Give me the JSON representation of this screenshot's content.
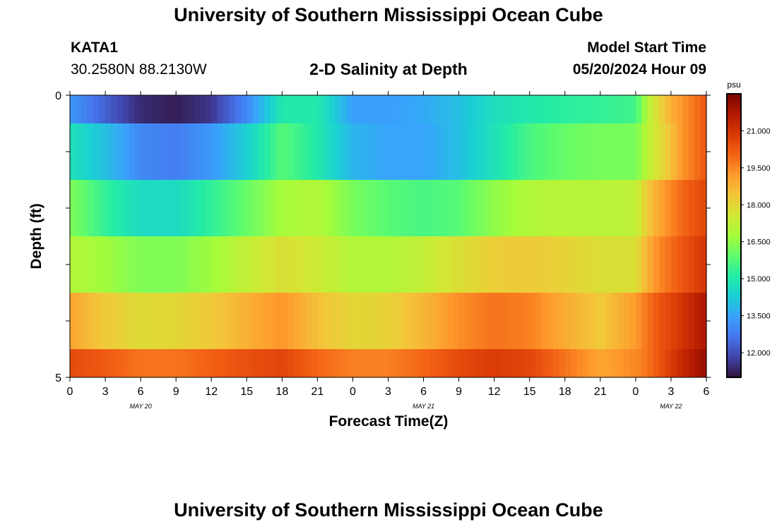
{
  "header": {
    "title": "University of Southern Mississippi Ocean Cube",
    "station": "KATA1",
    "coords": "30.2580N  88.2130W",
    "subtitle": "2-D Salinity at Depth",
    "model_label": "Model Start Time",
    "model_time": "05/20/2024 Hour 09"
  },
  "footer": {
    "title": "University of Southern Mississippi Ocean Cube"
  },
  "chart_data": {
    "type": "heatmap",
    "title": "2-D Salinity at Depth",
    "xlabel": "Forecast Time(Z)",
    "ylabel": "Depth (ft)",
    "ylim": [
      0,
      5
    ],
    "y_tick_labels": [
      "0",
      "5"
    ],
    "x_tick_labels": [
      "0",
      "3",
      "6",
      "9",
      "12",
      "15",
      "18",
      "21",
      "0",
      "3",
      "6",
      "9",
      "12",
      "15",
      "18",
      "21",
      "0",
      "3",
      "6"
    ],
    "date_labels": [
      {
        "label": "MAY 20",
        "at_tick": 2
      },
      {
        "label": "MAY 21",
        "at_tick": 10
      },
      {
        "label": "MAY 22",
        "at_tick": 17
      }
    ],
    "colorbar": {
      "unit": "psu",
      "min": 11.0,
      "max": 22.5,
      "ticks": [
        "12.000",
        "13.500",
        "15.000",
        "16.500",
        "18.000",
        "19.500",
        "21.000"
      ],
      "tick_values": [
        12.0,
        13.5,
        15.0,
        16.5,
        18.0,
        19.5,
        21.0
      ],
      "colors": [
        "#30123b",
        "#4145ab",
        "#4675ed",
        "#39a2fc",
        "#1bcfd4",
        "#24eca6",
        "#61fc6c",
        "#a4fc3b",
        "#d1e834",
        "#f3c63a",
        "#fe9b2d",
        "#f36315",
        "#d93806",
        "#b11901",
        "#7a0403"
      ]
    },
    "x_hours": [
      0,
      54
    ],
    "depth_bands": [
      {
        "depth": [
          0.0,
          0.5
        ],
        "time_hours": [
          0,
          3,
          6,
          9,
          12,
          15,
          18,
          21,
          24,
          27,
          30,
          33,
          36,
          39,
          42,
          45,
          48,
          49,
          50,
          51,
          52,
          53,
          54
        ],
        "salinity": [
          13.3,
          12.3,
          11.4,
          11.2,
          11.6,
          13.0,
          15.0,
          15.0,
          13.4,
          13.4,
          13.6,
          14.0,
          14.7,
          15.0,
          15.2,
          15.3,
          15.5,
          17.0,
          18.0,
          18.8,
          19.3,
          19.8,
          20.3
        ]
      },
      {
        "depth": [
          0.5,
          1.5
        ],
        "time_hours": [
          0,
          3,
          6,
          9,
          12,
          15,
          18,
          21,
          24,
          27,
          30,
          33,
          36,
          39,
          42,
          45,
          48,
          49,
          50,
          51,
          52,
          53,
          54
        ],
        "salinity": [
          14.8,
          14.0,
          13.0,
          12.8,
          13.3,
          14.3,
          15.8,
          15.0,
          13.8,
          13.5,
          13.5,
          14.0,
          14.8,
          15.6,
          16.0,
          16.2,
          16.2,
          17.2,
          17.8,
          18.5,
          19.3,
          19.8,
          20.3
        ]
      },
      {
        "depth": [
          1.5,
          2.5
        ],
        "time_hours": [
          0,
          3,
          6,
          9,
          12,
          15,
          18,
          21,
          24,
          27,
          30,
          33,
          36,
          39,
          42,
          45,
          48,
          49,
          50,
          51,
          52,
          53,
          54
        ],
        "salinity": [
          16.3,
          15.3,
          14.6,
          14.6,
          15.3,
          16.0,
          16.8,
          17.0,
          16.2,
          15.8,
          15.6,
          15.8,
          16.5,
          17.0,
          17.1,
          17.1,
          17.2,
          18.3,
          19.0,
          19.5,
          20.0,
          20.3,
          20.6
        ]
      },
      {
        "depth": [
          2.5,
          3.5
        ],
        "time_hours": [
          0,
          3,
          6,
          9,
          12,
          15,
          18,
          21,
          24,
          27,
          30,
          33,
          36,
          39,
          42,
          45,
          48,
          49,
          50,
          51,
          52,
          53,
          54
        ],
        "salinity": [
          17.0,
          16.7,
          16.3,
          16.3,
          16.7,
          17.3,
          17.8,
          17.5,
          17.0,
          17.0,
          17.3,
          17.8,
          18.2,
          18.3,
          18.1,
          17.8,
          17.8,
          18.8,
          19.5,
          19.9,
          20.3,
          20.6,
          21.0
        ]
      },
      {
        "depth": [
          3.5,
          4.5
        ],
        "time_hours": [
          0,
          3,
          6,
          9,
          12,
          15,
          18,
          21,
          24,
          27,
          30,
          33,
          36,
          39,
          42,
          45,
          48,
          49,
          50,
          51,
          52,
          53,
          54
        ],
        "salinity": [
          19.0,
          18.3,
          17.9,
          18.0,
          18.3,
          18.8,
          19.3,
          18.5,
          18.0,
          18.1,
          18.7,
          19.4,
          19.8,
          19.6,
          18.9,
          18.3,
          19.2,
          19.8,
          20.3,
          20.6,
          21.0,
          21.4,
          21.8
        ]
      },
      {
        "depth": [
          4.5,
          5.0
        ],
        "time_hours": [
          0,
          3,
          6,
          9,
          12,
          15,
          18,
          21,
          24,
          27,
          30,
          33,
          36,
          39,
          42,
          45,
          48,
          49,
          50,
          51,
          52,
          53,
          54
        ],
        "salinity": [
          20.5,
          20.2,
          19.8,
          19.8,
          20.1,
          20.4,
          20.6,
          20.0,
          19.6,
          19.6,
          20.0,
          20.5,
          20.8,
          20.6,
          19.8,
          19.0,
          19.5,
          19.8,
          20.3,
          20.8,
          21.3,
          21.7,
          22.1
        ]
      }
    ]
  }
}
